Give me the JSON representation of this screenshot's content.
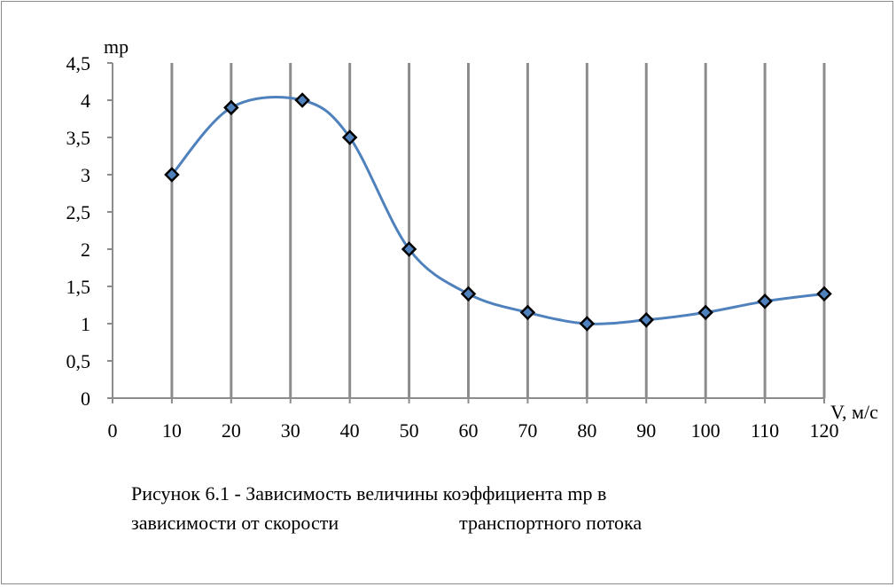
{
  "chart_data": {
    "type": "line",
    "ylabel": "mр",
    "xlabel": "V, м/с",
    "xlim": [
      0,
      120
    ],
    "ylim": [
      0,
      4.5
    ],
    "x_ticks": [
      "0",
      "10",
      "20",
      "30",
      "40",
      "50",
      "60",
      "70",
      "80",
      "90",
      "100",
      "110",
      "120"
    ],
    "y_ticks": [
      "0",
      "0,5",
      "1",
      "1,5",
      "2",
      "2,5",
      "3",
      "3,5",
      "4",
      "4,5"
    ],
    "grid": "vertical",
    "marker": "diamond",
    "line_color": "#4f81bd",
    "gridline_color": "#8c8c8c",
    "series": [
      {
        "x": [
          10,
          20,
          32,
          40,
          50,
          60,
          70,
          80,
          90,
          100,
          110,
          120
        ],
        "y": [
          3,
          3.9,
          4,
          3.5,
          2,
          1.4,
          1.15,
          1,
          1.05,
          1.15,
          1.3,
          1.4
        ]
      }
    ]
  },
  "caption": {
    "line1": "Рисунок 6.1 - Зависимость величины коэффициента mр в",
    "line2_part1": "зависимости от скорости",
    "line2_part2": "транспортного потока"
  }
}
